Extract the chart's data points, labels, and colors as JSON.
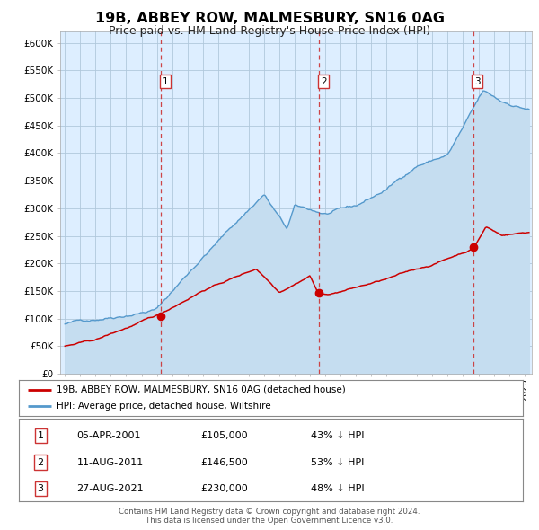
{
  "title": "19B, ABBEY ROW, MALMESBURY, SN16 0AG",
  "subtitle": "Price paid vs. HM Land Registry's House Price Index (HPI)",
  "title_fontsize": 11.5,
  "subtitle_fontsize": 9,
  "background_color": "#ffffff",
  "plot_bg_color": "#ddeeff",
  "grid_color": "#c8d8e8",
  "ylim": [
    0,
    620000
  ],
  "yticks": [
    0,
    50000,
    100000,
    150000,
    200000,
    250000,
    300000,
    350000,
    400000,
    450000,
    500000,
    550000,
    600000
  ],
  "ytick_labels": [
    "£0",
    "£50K",
    "£100K",
    "£150K",
    "£200K",
    "£250K",
    "£300K",
    "£350K",
    "£400K",
    "£450K",
    "£500K",
    "£550K",
    "£600K"
  ],
  "xlim_start": 1994.7,
  "xlim_end": 2025.5,
  "hpi_line_color": "#5599cc",
  "hpi_fill_color": "#c5ddf0",
  "price_line_color": "#cc0000",
  "sale_marker_color": "#cc0000",
  "vline_color": "#cc3333",
  "sale_dates": [
    2001.26,
    2011.61,
    2021.65
  ],
  "sale_prices": [
    105000,
    146500,
    230000
  ],
  "sale_labels": [
    "1",
    "2",
    "3"
  ],
  "legend_entries": [
    "19B, ABBEY ROW, MALMESBURY, SN16 0AG (detached house)",
    "HPI: Average price, detached house, Wiltshire"
  ],
  "table_rows": [
    [
      "1",
      "05-APR-2001",
      "£105,000",
      "43% ↓ HPI"
    ],
    [
      "2",
      "11-AUG-2011",
      "£146,500",
      "53% ↓ HPI"
    ],
    [
      "3",
      "27-AUG-2021",
      "£230,000",
      "48% ↓ HPI"
    ]
  ],
  "footnote1": "Contains HM Land Registry data © Crown copyright and database right 2024.",
  "footnote2": "This data is licensed under the Open Government Licence v3.0."
}
